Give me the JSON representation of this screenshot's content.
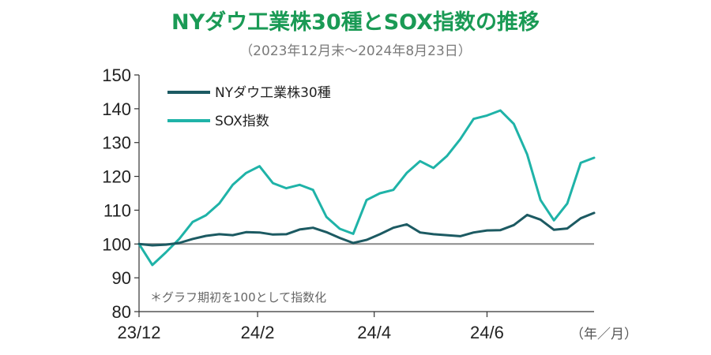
{
  "chart_data": {
    "type": "line",
    "title": "NYダウ工業株30種とSOX指数の推移",
    "subtitle": "（2023年12月末～2024年8月23日）",
    "note": "＊グラフ期初を100として指数化",
    "x_unit": "（年／月）",
    "ylim": [
      80,
      150
    ],
    "yticks": [
      80,
      90,
      100,
      110,
      120,
      130,
      140,
      150
    ],
    "xlim": [
      "2023-12-29",
      "2024-08-23"
    ],
    "xticks": [
      {
        "date": "2023-12-29",
        "label": "23/12"
      },
      {
        "date": "2024-02-29",
        "label": "24/2"
      },
      {
        "date": "2024-04-30",
        "label": "24/4"
      },
      {
        "date": "2024-06-28",
        "label": "24/6"
      }
    ],
    "reference_line": 100,
    "grid": false,
    "legend_position": "top-left",
    "series": [
      {
        "name": "NYダウ工業株30種",
        "color": "#1c5a62",
        "x": [
          "2023-12-29",
          "2024-01-05",
          "2024-01-12",
          "2024-01-19",
          "2024-01-26",
          "2024-02-02",
          "2024-02-09",
          "2024-02-16",
          "2024-02-23",
          "2024-03-01",
          "2024-03-08",
          "2024-03-15",
          "2024-03-22",
          "2024-03-29",
          "2024-04-05",
          "2024-04-12",
          "2024-04-19",
          "2024-04-26",
          "2024-05-03",
          "2024-05-10",
          "2024-05-17",
          "2024-05-24",
          "2024-05-31",
          "2024-06-07",
          "2024-06-14",
          "2024-06-21",
          "2024-06-28",
          "2024-07-05",
          "2024-07-12",
          "2024-07-19",
          "2024-07-26",
          "2024-08-02",
          "2024-08-09",
          "2024-08-16",
          "2024-08-23"
        ],
        "values": [
          100,
          99.6,
          99.8,
          100.3,
          101.5,
          102.4,
          102.9,
          102.6,
          103.5,
          103.4,
          102.8,
          102.9,
          104.3,
          104.8,
          103.5,
          101.8,
          100.3,
          101.2,
          102.9,
          104.8,
          105.8,
          103.4,
          102.9,
          102.6,
          102.3,
          103.4,
          104.0,
          104.1,
          105.6,
          108.6,
          107.2,
          104.2,
          104.6,
          107.6,
          109.2
        ]
      },
      {
        "name": "SOX指数",
        "color": "#1fb3a8",
        "x": [
          "2023-12-29",
          "2024-01-05",
          "2024-01-12",
          "2024-01-19",
          "2024-01-26",
          "2024-02-02",
          "2024-02-09",
          "2024-02-16",
          "2024-02-23",
          "2024-03-01",
          "2024-03-08",
          "2024-03-15",
          "2024-03-22",
          "2024-03-29",
          "2024-04-05",
          "2024-04-12",
          "2024-04-19",
          "2024-04-26",
          "2024-05-03",
          "2024-05-10",
          "2024-05-17",
          "2024-05-24",
          "2024-05-31",
          "2024-06-07",
          "2024-06-14",
          "2024-06-21",
          "2024-06-28",
          "2024-07-05",
          "2024-07-12",
          "2024-07-19",
          "2024-07-26",
          "2024-08-02",
          "2024-08-09",
          "2024-08-16",
          "2024-08-23"
        ],
        "values": [
          100,
          93.8,
          97.5,
          101.5,
          106.5,
          108.5,
          112.0,
          117.5,
          121.0,
          123.0,
          118.0,
          116.5,
          117.5,
          116.0,
          108.0,
          104.5,
          103.0,
          113.0,
          115.0,
          116.0,
          121.0,
          124.5,
          122.5,
          126.0,
          131.0,
          137.0,
          138.0,
          139.5,
          135.5,
          126.5,
          113.0,
          107.0,
          112.0,
          124.0,
          125.5
        ]
      }
    ]
  }
}
